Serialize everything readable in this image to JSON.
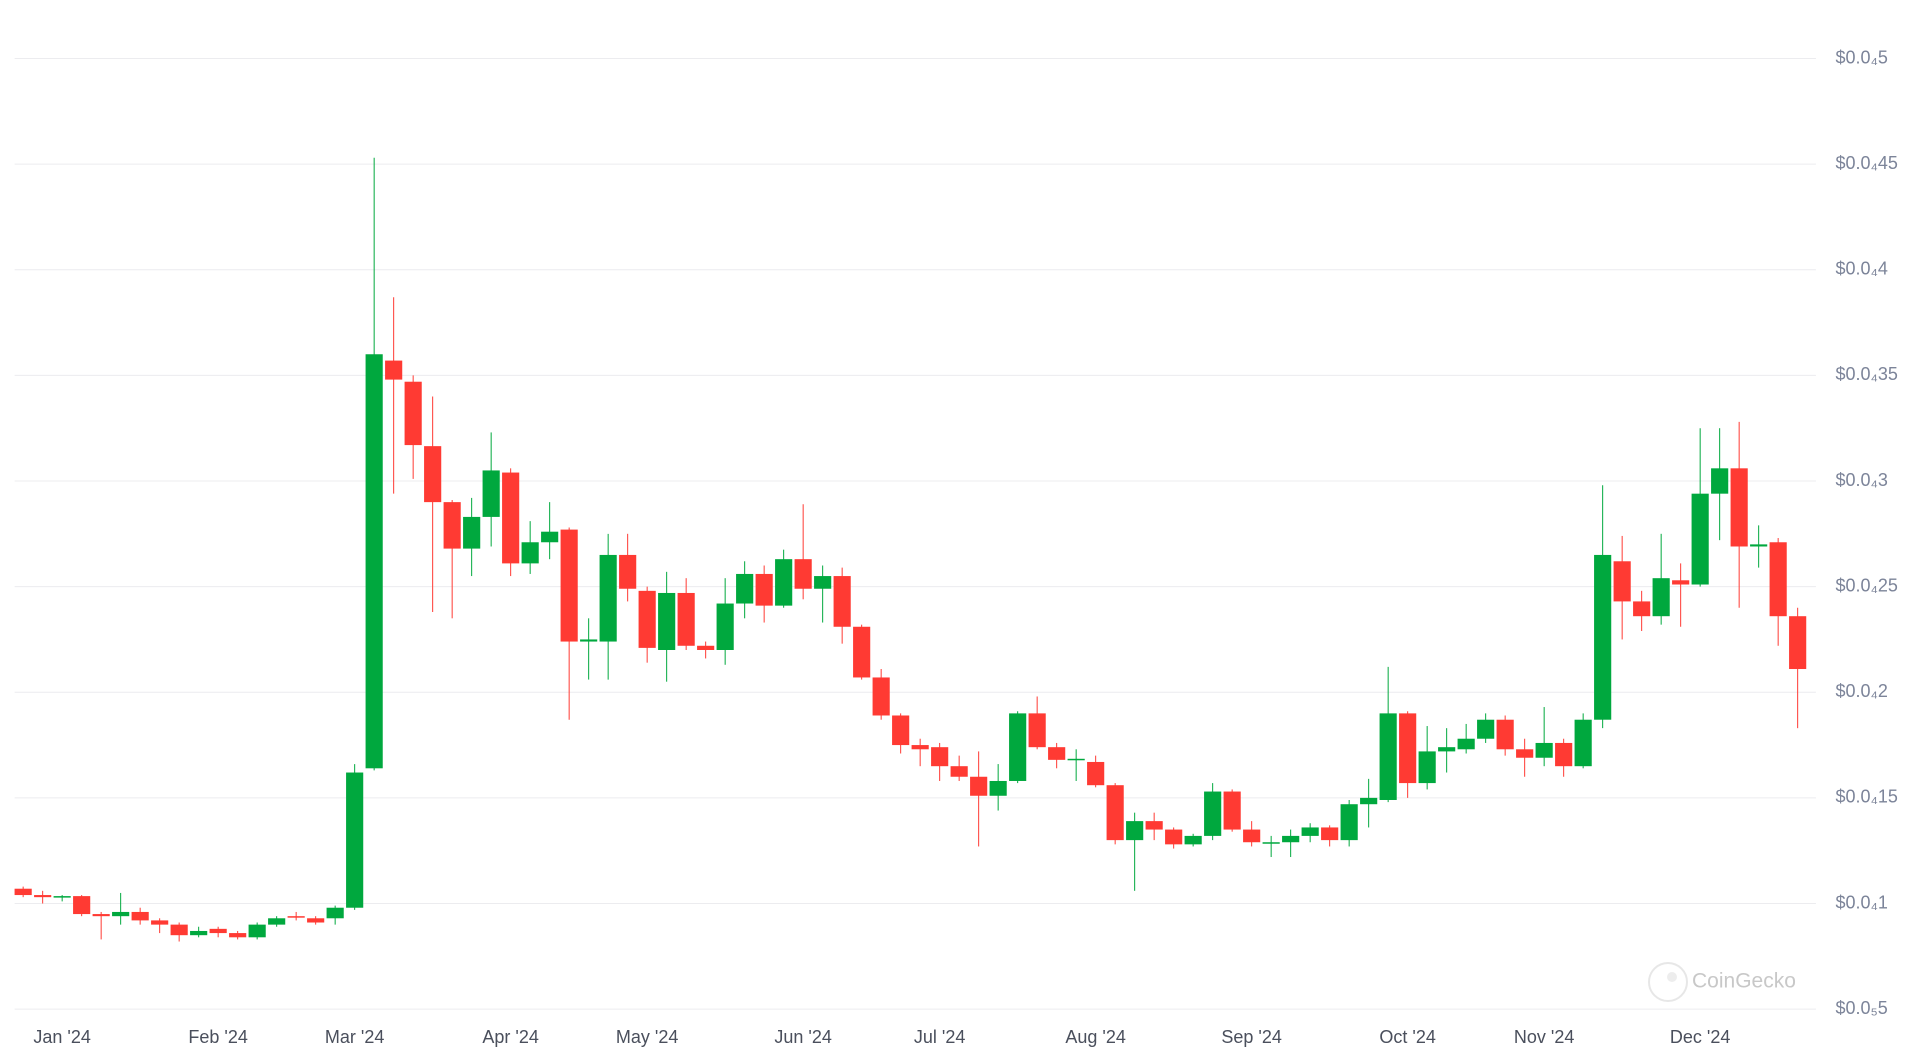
{
  "chart_data": {
    "type": "candlestick",
    "categories": [
      null,
      null,
      "Jan '24",
      null,
      null,
      null,
      null,
      null,
      null,
      null,
      "Feb '24",
      null,
      null,
      null,
      null,
      null,
      null,
      "Mar '24",
      null,
      null,
      null,
      null,
      null,
      null,
      null,
      "Apr '24",
      null,
      null,
      null,
      null,
      null,
      null,
      "May '24",
      null,
      null,
      null,
      null,
      null,
      null,
      null,
      "Jun '24",
      null,
      null,
      null,
      null,
      null,
      null,
      "Jul '24",
      null,
      null,
      null,
      null,
      null,
      null,
      null,
      "Aug '24",
      null,
      null,
      null,
      null,
      null,
      null,
      null,
      "Sep '24",
      null,
      null,
      null,
      null,
      null,
      null,
      null,
      "Oct '24",
      null,
      null,
      null,
      null,
      null,
      null,
      "Nov '24",
      null,
      null,
      null,
      null,
      null,
      null,
      null,
      "Dec '24",
      null,
      null,
      null,
      null,
      null
    ],
    "open": [
      1.07e-05,
      1.04e-05,
      1.03e-05,
      1.035e-05,
      9.5e-06,
      9.4e-06,
      9.6e-06,
      9.2e-06,
      9e-06,
      8.5e-06,
      8.8e-06,
      8.6e-06,
      8.4e-06,
      9e-06,
      9.4e-06,
      9.3e-06,
      9.3e-06,
      9.8e-06,
      1.64e-05,
      3.57e-05,
      3.47e-05,
      3.165e-05,
      2.9e-05,
      2.68e-05,
      2.83e-05,
      3.04e-05,
      2.61e-05,
      2.71e-05,
      2.77e-05,
      2.24e-05,
      2.24e-05,
      2.65e-05,
      2.48e-05,
      2.2e-05,
      2.47e-05,
      2.22e-05,
      2.2e-05,
      2.42e-05,
      2.56e-05,
      2.41e-05,
      2.63e-05,
      2.49e-05,
      2.55e-05,
      2.31e-05,
      2.07e-05,
      1.89e-05,
      1.75e-05,
      1.74e-05,
      1.65e-05,
      1.6e-05,
      1.51e-05,
      1.58e-05,
      1.9e-05,
      1.74e-05,
      1.68e-05,
      1.67e-05,
      1.56e-05,
      1.3e-05,
      1.39e-05,
      1.35e-05,
      1.28e-05,
      1.32e-05,
      1.53e-05,
      1.35e-05,
      1.285e-05,
      1.29e-05,
      1.32e-05,
      1.36e-05,
      1.3e-05,
      1.47e-05,
      1.49e-05,
      1.9e-05,
      1.57e-05,
      1.72e-05,
      1.73e-05,
      1.78e-05,
      1.87e-05,
      1.73e-05,
      1.69e-05,
      1.76e-05,
      1.65e-05,
      1.87e-05,
      2.62e-05,
      2.43e-05,
      2.36e-05,
      2.53e-05,
      2.51e-05,
      2.94e-05,
      3.06e-05,
      2.69e-05,
      2.71e-05,
      2.36e-05
    ],
    "high": [
      1.08e-05,
      1.06e-05,
      1.04e-05,
      1.04e-05,
      9.6e-06,
      1.05e-05,
      9.8e-06,
      9.3e-06,
      9.1e-06,
      8.9e-06,
      8.9e-06,
      8.7e-06,
      9.1e-06,
      9.4e-06,
      9.6e-06,
      9.4e-06,
      9.9e-06,
      1.66e-05,
      4.53e-05,
      3.87e-05,
      3.5e-05,
      3.4e-05,
      2.91e-05,
      2.92e-05,
      3.23e-05,
      3.06e-05,
      2.81e-05,
      2.9e-05,
      2.78e-05,
      2.35e-05,
      2.75e-05,
      2.75e-05,
      2.5e-05,
      2.57e-05,
      2.54e-05,
      2.24e-05,
      2.54e-05,
      2.62e-05,
      2.6e-05,
      2.675e-05,
      2.89e-05,
      2.6e-05,
      2.59e-05,
      2.32e-05,
      2.11e-05,
      1.9e-05,
      1.78e-05,
      1.76e-05,
      1.7e-05,
      1.72e-05,
      1.66e-05,
      1.91e-05,
      1.98e-05,
      1.76e-05,
      1.73e-05,
      1.7e-05,
      1.57e-05,
      1.43e-05,
      1.43e-05,
      1.36e-05,
      1.33e-05,
      1.57e-05,
      1.54e-05,
      1.39e-05,
      1.32e-05,
      1.35e-05,
      1.38e-05,
      1.37e-05,
      1.49e-05,
      1.59e-05,
      2.12e-05,
      1.91e-05,
      1.84e-05,
      1.83e-05,
      1.85e-05,
      1.9e-05,
      1.89e-05,
      1.78e-05,
      1.93e-05,
      1.78e-05,
      1.9e-05,
      2.98e-05,
      2.74e-05,
      2.48e-05,
      2.75e-05,
      2.61e-05,
      3.25e-05,
      3.25e-05,
      3.28e-05,
      2.79e-05,
      2.73e-05,
      2.4e-05
    ],
    "low": [
      1.03e-05,
      1e-05,
      1.01e-05,
      9.4e-06,
      8.3e-06,
      9e-06,
      9e-06,
      8.6e-06,
      8.2e-06,
      8.4e-06,
      8.4e-06,
      8.3e-06,
      8.3e-06,
      8.9e-06,
      9.2e-06,
      9e-06,
      9e-06,
      9.7e-06,
      1.63e-05,
      2.94e-05,
      3.01e-05,
      2.38e-05,
      2.35e-05,
      2.55e-05,
      2.69e-05,
      2.55e-05,
      2.56e-05,
      2.63e-05,
      1.87e-05,
      2.06e-05,
      2.06e-05,
      2.43e-05,
      2.14e-05,
      2.05e-05,
      2.2e-05,
      2.16e-05,
      2.13e-05,
      2.35e-05,
      2.33e-05,
      2.4e-05,
      2.44e-05,
      2.33e-05,
      2.23e-05,
      2.06e-05,
      1.87e-05,
      1.71e-05,
      1.65e-05,
      1.58e-05,
      1.58e-05,
      1.27e-05,
      1.44e-05,
      1.57e-05,
      1.73e-05,
      1.64e-05,
      1.58e-05,
      1.55e-05,
      1.28e-05,
      1.06e-05,
      1.3e-05,
      1.26e-05,
      1.27e-05,
      1.3e-05,
      1.34e-05,
      1.27e-05,
      1.22e-05,
      1.22e-05,
      1.29e-05,
      1.27e-05,
      1.27e-05,
      1.36e-05,
      1.48e-05,
      1.5e-05,
      1.54e-05,
      1.62e-05,
      1.71e-05,
      1.76e-05,
      1.7e-05,
      1.6e-05,
      1.65e-05,
      1.6e-05,
      1.64e-05,
      1.83e-05,
      2.25e-05,
      2.29e-05,
      2.32e-05,
      2.31e-05,
      2.5e-05,
      2.72e-05,
      2.4e-05,
      2.59e-05,
      2.22e-05,
      1.83e-05
    ],
    "close": [
      1.04e-05,
      1.03e-05,
      1.035e-05,
      9.5e-06,
      9.4e-06,
      9.6e-06,
      9.2e-06,
      9e-06,
      8.5e-06,
      8.7e-06,
      8.6e-06,
      8.4e-06,
      9e-06,
      9.3e-06,
      9.35e-06,
      9.1e-06,
      9.8e-06,
      1.62e-05,
      3.6e-05,
      3.48e-05,
      3.17e-05,
      2.9e-05,
      2.68e-05,
      2.83e-05,
      3.05e-05,
      2.61e-05,
      2.71e-05,
      2.76e-05,
      2.24e-05,
      2.25e-05,
      2.65e-05,
      2.49e-05,
      2.21e-05,
      2.47e-05,
      2.22e-05,
      2.2e-05,
      2.42e-05,
      2.56e-05,
      2.41e-05,
      2.63e-05,
      2.49e-05,
      2.55e-05,
      2.31e-05,
      2.07e-05,
      1.89e-05,
      1.75e-05,
      1.73e-05,
      1.65e-05,
      1.6e-05,
      1.51e-05,
      1.58e-05,
      1.9e-05,
      1.74e-05,
      1.68e-05,
      1.685e-05,
      1.56e-05,
      1.3e-05,
      1.39e-05,
      1.35e-05,
      1.28e-05,
      1.32e-05,
      1.53e-05,
      1.35e-05,
      1.29e-05,
      1.29e-05,
      1.32e-05,
      1.36e-05,
      1.3e-05,
      1.47e-05,
      1.5e-05,
      1.9e-05,
      1.57e-05,
      1.72e-05,
      1.74e-05,
      1.78e-05,
      1.87e-05,
      1.73e-05,
      1.69e-05,
      1.76e-05,
      1.65e-05,
      1.87e-05,
      2.65e-05,
      2.43e-05,
      2.36e-05,
      2.54e-05,
      2.51e-05,
      2.94e-05,
      3.06e-05,
      2.69e-05,
      2.7e-05,
      2.36e-05,
      2.11e-05
    ],
    "up_color": "#00a83e",
    "down_color": "#ff3a33",
    "ylim": [
      5e-06,
      5e-05
    ],
    "yticks": [
      {
        "value": 5e-06,
        "label": "$0.0₅5"
      },
      {
        "value": 1e-05,
        "label": "$0.0₄1"
      },
      {
        "value": 1.5e-05,
        "label": "$0.0₄15"
      },
      {
        "value": 2e-05,
        "label": "$0.0₄2"
      },
      {
        "value": 2.5e-05,
        "label": "$0.0₄25"
      },
      {
        "value": 3e-05,
        "label": "$0.0₄3"
      },
      {
        "value": 3.5e-05,
        "label": "$0.0₄35"
      },
      {
        "value": 4e-05,
        "label": "$0.0₄4"
      },
      {
        "value": 4.5e-05,
        "label": "$0.0₄45"
      },
      {
        "value": 5e-05,
        "label": "$0.0₄5"
      }
    ],
    "grid": true,
    "watermark": "CoinGecko"
  }
}
